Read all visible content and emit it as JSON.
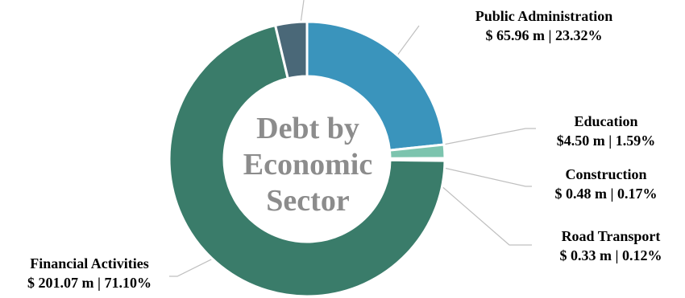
{
  "chart_data": {
    "type": "pie",
    "title_lines": [
      "Debt by",
      "Economic",
      "Sector"
    ],
    "slices": [
      {
        "name": "Public Administration",
        "value": 65.96,
        "value_text": "$ 65.96 m | 23.32%",
        "percent": 23.32,
        "color": "#3a94bc"
      },
      {
        "name": "Education",
        "value": 4.5,
        "value_text": "$4.50 m | 1.59%",
        "percent": 1.59,
        "color": "#7cc4ae"
      },
      {
        "name": "Construction",
        "value": 0.48,
        "value_text": "$ 0.48 m | 0.17%",
        "percent": 0.17,
        "color": "#2e6e78"
      },
      {
        "name": "Road Transport",
        "value": 0.33,
        "value_text": "$ 0.33 m | 0.12%",
        "percent": 0.12,
        "color": "#23556a"
      },
      {
        "name": "Financial Activities",
        "value": 201.07,
        "value_text": "$ 201.07 m | 71.10%",
        "percent": 71.1,
        "color": "#3a7c6a"
      },
      {
        "name": "",
        "value": null,
        "percent": 3.7,
        "color": "#4a6878"
      }
    ],
    "line_color": "#bfbfbf"
  }
}
